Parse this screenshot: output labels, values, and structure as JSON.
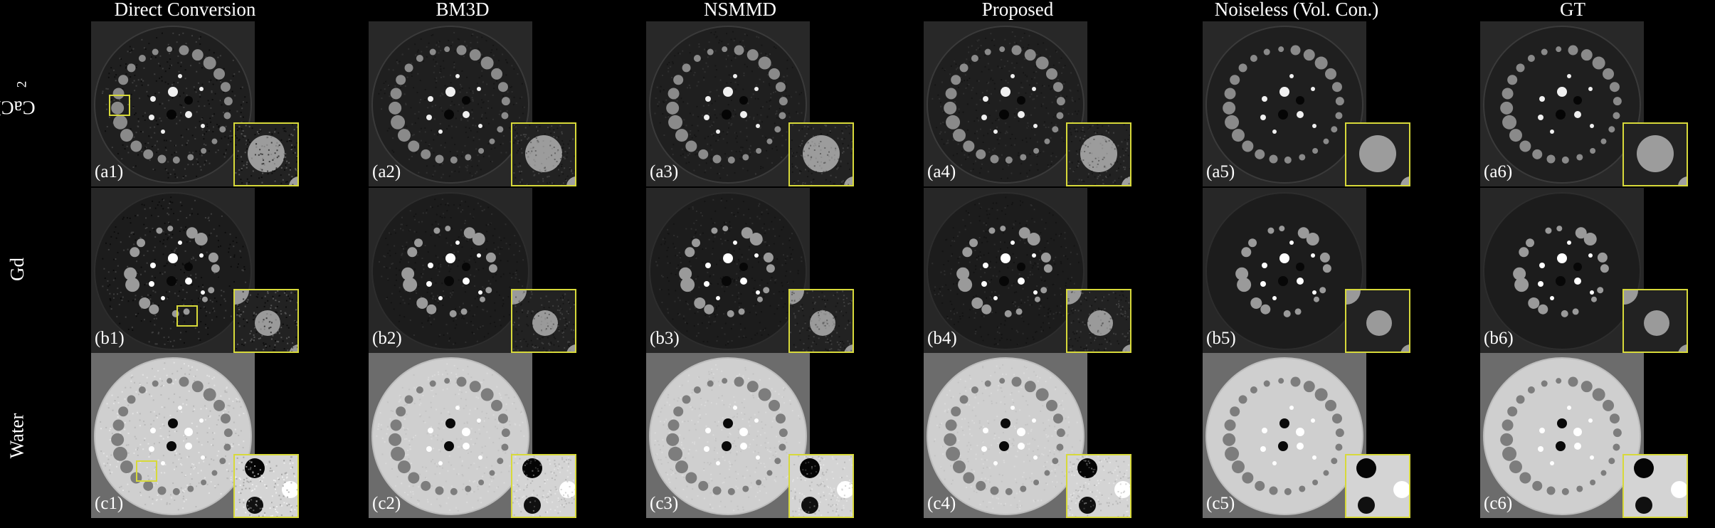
{
  "column_titles": [
    "Direct Conversion",
    "BM3D",
    "NSMMD",
    "Proposed",
    "Noiseless (Vol. Con.)",
    "GT"
  ],
  "row_titles": {
    "r0_main": "CaCl",
    "r0_sub": "2",
    "r1": "Gd",
    "r2": "Water"
  },
  "panel_labels": [
    [
      "(a1)",
      "(a2)",
      "(a3)",
      "(a4)",
      "(a5)",
      "(a6)"
    ],
    [
      "(b1)",
      "(b2)",
      "(b3)",
      "(b4)",
      "(b5)",
      "(b6)"
    ],
    [
      "(c1)",
      "(c2)",
      "(c3)",
      "(c4)",
      "(c5)",
      "(c6)"
    ]
  ],
  "colors": {
    "background": "#000000",
    "inset_border": "#d7d93a",
    "text": "#ffffff"
  }
}
